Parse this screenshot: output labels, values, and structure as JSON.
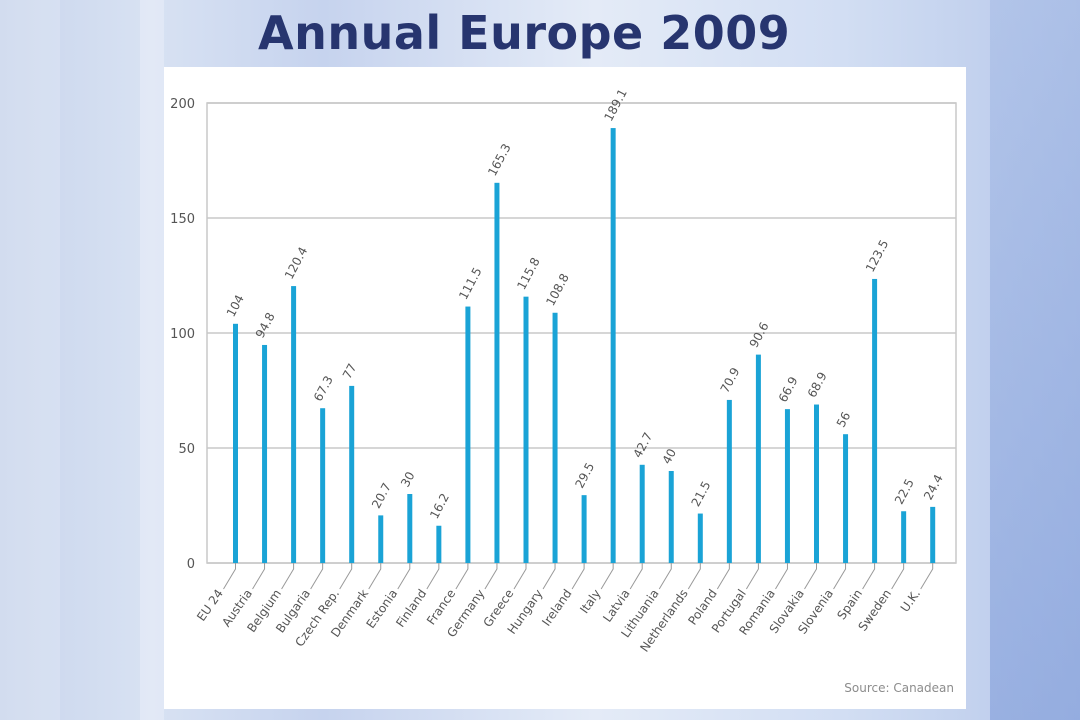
{
  "slide": {
    "title": "Annual Europe 2009"
  },
  "colors": {
    "bar": "#1aa3d6",
    "grid": "#c8c8c8",
    "axis_text": "#555555",
    "title": "#27356f"
  },
  "chart_data": {
    "type": "bar",
    "title": "",
    "xlabel": "",
    "ylabel": "",
    "ylim": [
      0,
      200
    ],
    "yticks": [
      0,
      50,
      100,
      150,
      200
    ],
    "grid": true,
    "categories": [
      "EU 24",
      "Austria",
      "Belgium",
      "Bulgaria",
      "Czech Rep.",
      "Denmark",
      "Estonia",
      "Finland",
      "France",
      "Germany",
      "Greece",
      "Hungary",
      "Ireland",
      "Italy",
      "Latvia",
      "Lithuania",
      "Netherlands",
      "Poland",
      "Portugal",
      "Romania",
      "Slovakia",
      "Slovenia",
      "Spain",
      "Sweden",
      "U.K."
    ],
    "values": [
      104,
      94.8,
      120.4,
      67.3,
      77,
      20.7,
      30,
      16.2,
      111.5,
      165.3,
      115.8,
      108.8,
      29.5,
      189.1,
      42.7,
      40,
      21.5,
      70.9,
      90.6,
      66.9,
      68.9,
      56,
      123.5,
      22.5,
      24.4
    ],
    "value_labels": [
      "104",
      "94.8",
      "120.4",
      "67.3",
      "77",
      "20.7",
      "30",
      "16.2",
      "111.5",
      "165.3",
      "115.8",
      "108.8",
      "29.5",
      "189.1",
      "42.7",
      "40",
      "21.5",
      "70.9",
      "90.6",
      "66.9",
      "68.9",
      "56",
      "123.5",
      "22.5",
      "24.4"
    ],
    "source": "Source: Canadean"
  }
}
